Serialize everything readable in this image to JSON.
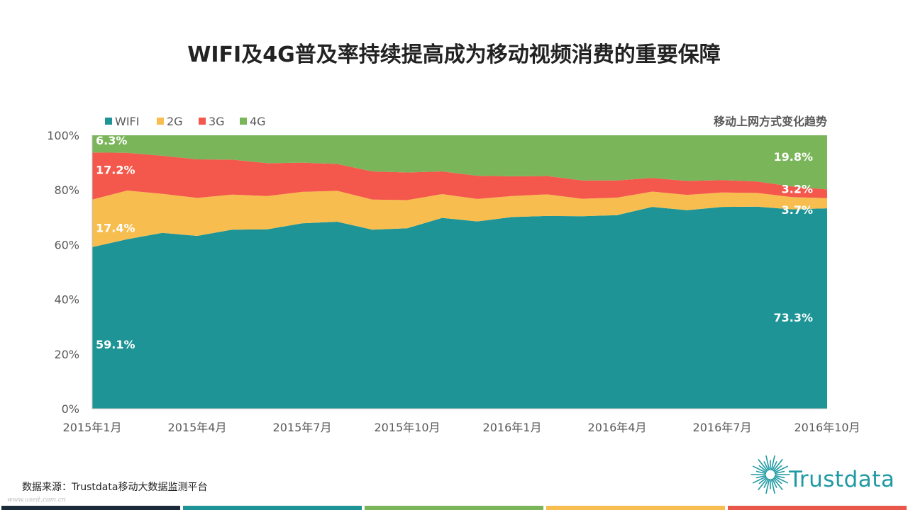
{
  "title": "WIFI及4G普及率持续提高成为移动视频消费的重要保障",
  "source": "数据来源：Trustdata移动大数据监测平台",
  "watermark": "www.useit.com.cn",
  "brand": {
    "name": "Trustdata",
    "color": "#1f9aa3"
  },
  "bottom_stripe_colors": [
    "#1c2b3a",
    "#1e9496",
    "#7ab55a",
    "#f7be4f",
    "#e8574a"
  ],
  "chart_data": {
    "type": "area",
    "stacked": true,
    "subtitle": "移动上网方式变化趋势",
    "legend_position": "top-left",
    "ylim": [
      0,
      100
    ],
    "yticks": [
      "0%",
      "20%",
      "40%",
      "60%",
      "80%",
      "100%"
    ],
    "x": [
      "2015年1月",
      "2015年2月",
      "2015年3月",
      "2015年4月",
      "2015年5月",
      "2015年6月",
      "2015年7月",
      "2015年8月",
      "2015年9月",
      "2015年10月",
      "2015年11月",
      "2015年12月",
      "2016年1月",
      "2016年2月",
      "2016年3月",
      "2016年4月",
      "2016年5月",
      "2016年6月",
      "2016年7月",
      "2016年8月",
      "2016年9月",
      "2016年10月"
    ],
    "xtick_labels": [
      "2015年1月",
      "2015年4月",
      "2015年7月",
      "2015年10月",
      "2016年1月",
      "2016年4月",
      "2016年7月",
      "2016年10月"
    ],
    "xtick_indices": [
      0,
      3,
      6,
      9,
      12,
      15,
      18,
      21
    ],
    "series": [
      {
        "name": "WIFI",
        "color": "#1e9496",
        "values": [
          59.1,
          62.0,
          64.3,
          63.2,
          65.5,
          65.6,
          67.8,
          68.4,
          65.5,
          66.0,
          69.8,
          68.5,
          70.1,
          70.5,
          70.4,
          70.8,
          73.8,
          72.6,
          73.8,
          73.9,
          72.9,
          73.3
        ]
      },
      {
        "name": "2G",
        "color": "#f7be4f",
        "values": [
          17.4,
          17.8,
          14.3,
          13.9,
          12.8,
          12.2,
          11.5,
          11.3,
          11.0,
          10.3,
          8.7,
          8.2,
          7.7,
          7.9,
          6.4,
          6.4,
          5.6,
          5.6,
          5.3,
          5.0,
          4.5,
          3.7
        ]
      },
      {
        "name": "3G",
        "color": "#f4574b",
        "values": [
          17.2,
          13.8,
          13.9,
          14.1,
          12.8,
          12.0,
          10.7,
          9.8,
          10.3,
          10.1,
          8.3,
          8.5,
          7.2,
          6.7,
          6.7,
          6.3,
          5.0,
          5.1,
          4.5,
          4.2,
          3.9,
          3.2
        ]
      },
      {
        "name": "4G",
        "color": "#7ab55a",
        "values": [
          6.3,
          6.4,
          7.5,
          8.8,
          8.9,
          10.2,
          10.0,
          10.5,
          13.2,
          13.6,
          13.2,
          14.8,
          15.0,
          14.9,
          16.5,
          16.5,
          15.6,
          16.7,
          16.4,
          16.9,
          18.7,
          19.8
        ]
      }
    ],
    "data_labels": [
      {
        "text": "6.3%",
        "series": 3,
        "index": 0
      },
      {
        "text": "17.2%",
        "series": 2,
        "index": 0
      },
      {
        "text": "17.4%",
        "series": 1,
        "index": 0
      },
      {
        "text": "59.1%",
        "series": 0,
        "index": 0
      },
      {
        "text": "19.8%",
        "series": 3,
        "index": 21
      },
      {
        "text": "3.2%",
        "series": 2,
        "index": 21
      },
      {
        "text": "3.7%",
        "series": 1,
        "index": 21
      },
      {
        "text": "73.3%",
        "series": 0,
        "index": 21
      }
    ]
  }
}
